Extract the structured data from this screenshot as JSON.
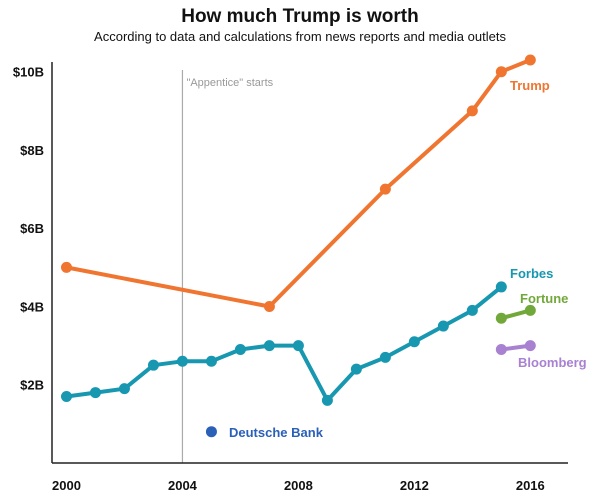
{
  "title": "How much Trump is worth",
  "subtitle": "According to data and calculations from news reports and media outlets",
  "colors": {
    "trump": "#f07530",
    "forbes": "#1797b0",
    "fortune": "#72a83a",
    "bloomberg": "#a881d1",
    "deutsche": "#2b60b8",
    "axis": "#222222",
    "annotation": "#aaaaaa"
  },
  "chart_data": {
    "type": "line",
    "title": "How much Trump is worth",
    "subtitle": "According to data and calculations from news reports and media outlets",
    "xlabel": "",
    "ylabel": "",
    "xlim": [
      1999.5,
      2017.3
    ],
    "ylim": [
      0,
      10.3
    ],
    "x_ticks": [
      2000,
      2004,
      2008,
      2012,
      2016
    ],
    "x_tick_labels": [
      "2000",
      "2004",
      "2008",
      "2012",
      "2016"
    ],
    "y_ticks": [
      2,
      4,
      6,
      8,
      10
    ],
    "y_tick_labels": [
      "$2B",
      "$4B",
      "$6B",
      "$8B",
      "$10B"
    ],
    "grid": false,
    "legend": "none",
    "annotations": [
      {
        "text": "\"Appentice\" starts",
        "x": 2004
      }
    ],
    "series": [
      {
        "name": "Trump",
        "color": "#f07530",
        "points": [
          [
            2000,
            5.0
          ],
          [
            2007,
            4.0
          ],
          [
            2011,
            7.0
          ],
          [
            2014,
            9.0
          ],
          [
            2015,
            10.0
          ],
          [
            2016,
            10.3
          ]
        ]
      },
      {
        "name": "Forbes",
        "color": "#1797b0",
        "points": [
          [
            2000,
            1.7
          ],
          [
            2001,
            1.8
          ],
          [
            2002,
            1.9
          ],
          [
            2003,
            2.5
          ],
          [
            2004,
            2.6
          ],
          [
            2005,
            2.6
          ],
          [
            2006,
            2.9
          ],
          [
            2007,
            3.0
          ],
          [
            2008,
            3.0
          ],
          [
            2009,
            1.6
          ],
          [
            2010,
            2.4
          ],
          [
            2011,
            2.7
          ],
          [
            2012,
            3.1
          ],
          [
            2013,
            3.5
          ],
          [
            2014,
            3.9
          ],
          [
            2015,
            4.5
          ]
        ]
      },
      {
        "name": "Fortune",
        "color": "#72a83a",
        "points": [
          [
            2015,
            3.7
          ],
          [
            2016,
            3.9
          ]
        ]
      },
      {
        "name": "Bloomberg",
        "color": "#a881d1",
        "points": [
          [
            2015,
            2.9
          ],
          [
            2016,
            3.0
          ]
        ]
      },
      {
        "name": "Deutsche Bank",
        "color": "#2b60b8",
        "points": [
          [
            2005,
            0.8
          ]
        ]
      }
    ]
  }
}
